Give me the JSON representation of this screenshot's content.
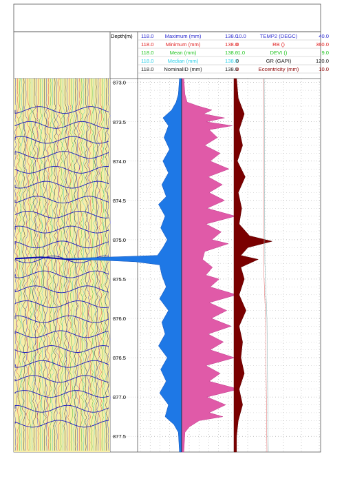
{
  "depth_header": "Depth(m)",
  "legend_rows": [
    {
      "left": "118.0",
      "name": "Maximum (mm)",
      "right": "138.0",
      "color": "#2f2fd0",
      "left2": "10.0",
      "name2": "TEMP2 (DEGC)",
      "right2": "40.0",
      "color2": "#2f2fd0"
    },
    {
      "left": "118.0",
      "name": "Minimum (mm)",
      "right": "138.0",
      "color": "#e02020",
      "left2": "0",
      "name2": "RB ()",
      "right2": "360.0",
      "color2": "#e02020"
    },
    {
      "left": "118.0",
      "name": "Mean (mm)",
      "right": "138.0",
      "color": "#22c522",
      "left2": "-1.0",
      "name2": "DEVI ()",
      "right2": "9.0",
      "color2": "#22c522"
    },
    {
      "left": "118.0",
      "name": "Median (mm)",
      "right": "138.0",
      "color": "#2fd0e8",
      "left2": "0",
      "name2": "GR (GAPI)",
      "right2": "120.0",
      "color2": "#222222"
    },
    {
      "left": "118.0",
      "name": "NominalID (mm)",
      "right": "138.0",
      "color": "#222222",
      "left2": "0",
      "name2": "Eccentricity (mm)",
      "right2": "10.0",
      "color2": "#8b0000"
    }
  ],
  "chart_data": {
    "type": "line",
    "title": "",
    "ylabel": "Depth(m)",
    "ylim": [
      872.95,
      877.7
    ],
    "depth_ticks": [
      873.0,
      873.5,
      874.0,
      874.5,
      875.0,
      875.5,
      876.0,
      876.5,
      877.0,
      877.5
    ],
    "caliper_scale": [
      118.0,
      138.0
    ],
    "nominal_id_mm": 126.0,
    "series": [
      {
        "name": "Maximum (mm)",
        "color": "#e05aa8",
        "points": [
          [
            872.95,
            126.4
          ],
          [
            873.15,
            126.6
          ],
          [
            873.25,
            127.0
          ],
          [
            873.3,
            129.0
          ],
          [
            873.35,
            131.5
          ],
          [
            873.4,
            130.0
          ],
          [
            873.45,
            133.8
          ],
          [
            873.5,
            130.5
          ],
          [
            873.55,
            135.2
          ],
          [
            873.6,
            131.0
          ],
          [
            873.7,
            132.5
          ],
          [
            873.8,
            130.2
          ],
          [
            873.9,
            133.0
          ],
          [
            874.0,
            131.2
          ],
          [
            874.1,
            134.6
          ],
          [
            874.2,
            130.8
          ],
          [
            874.3,
            133.4
          ],
          [
            874.4,
            131.0
          ],
          [
            874.5,
            133.8
          ],
          [
            874.6,
            130.6
          ],
          [
            874.7,
            135.8
          ],
          [
            874.8,
            130.4
          ],
          [
            874.9,
            133.2
          ],
          [
            875.0,
            131.5
          ],
          [
            875.05,
            134.5
          ],
          [
            875.15,
            130.2
          ],
          [
            875.25,
            129.8
          ],
          [
            875.35,
            131.6
          ],
          [
            875.45,
            130.4
          ],
          [
            875.5,
            132.8
          ],
          [
            875.6,
            131.2
          ],
          [
            875.7,
            136.0
          ],
          [
            875.8,
            131.0
          ],
          [
            875.9,
            134.2
          ],
          [
            876.0,
            131.4
          ],
          [
            876.1,
            135.0
          ],
          [
            876.2,
            130.8
          ],
          [
            876.3,
            133.6
          ],
          [
            876.4,
            131.2
          ],
          [
            876.5,
            135.6
          ],
          [
            876.6,
            130.4
          ],
          [
            876.7,
            133.0
          ],
          [
            876.8,
            131.0
          ],
          [
            876.9,
            136.4
          ],
          [
            877.0,
            130.6
          ],
          [
            877.1,
            134.0
          ],
          [
            877.2,
            131.0
          ],
          [
            877.25,
            133.5
          ],
          [
            877.3,
            129.2
          ],
          [
            877.38,
            127.4
          ],
          [
            877.45,
            126.6
          ],
          [
            877.7,
            126.4
          ]
        ]
      },
      {
        "name": "Minimum (mm)",
        "color": "#1e78e6",
        "points": [
          [
            872.95,
            125.6
          ],
          [
            873.15,
            125.4
          ],
          [
            873.25,
            125.0
          ],
          [
            873.35,
            124.2
          ],
          [
            873.45,
            122.6
          ],
          [
            873.55,
            123.6
          ],
          [
            873.7,
            122.8
          ],
          [
            873.85,
            123.8
          ],
          [
            874.0,
            122.6
          ],
          [
            874.15,
            123.6
          ],
          [
            874.3,
            122.4
          ],
          [
            874.45,
            123.2
          ],
          [
            874.55,
            121.8
          ],
          [
            874.7,
            123.0
          ],
          [
            874.85,
            122.2
          ],
          [
            875.0,
            123.4
          ],
          [
            875.1,
            122.6
          ],
          [
            875.2,
            121.6
          ],
          [
            875.24,
            104.4
          ],
          [
            875.28,
            117.6
          ],
          [
            875.32,
            122.0
          ],
          [
            875.45,
            122.4
          ],
          [
            875.6,
            123.2
          ],
          [
            875.75,
            122.0
          ],
          [
            875.9,
            123.6
          ],
          [
            876.05,
            122.4
          ],
          [
            876.2,
            123.0
          ],
          [
            876.35,
            121.8
          ],
          [
            876.5,
            123.4
          ],
          [
            876.65,
            122.2
          ],
          [
            876.8,
            123.2
          ],
          [
            876.95,
            122.0
          ],
          [
            877.1,
            123.6
          ],
          [
            877.25,
            123.0
          ],
          [
            877.35,
            124.6
          ],
          [
            877.45,
            125.4
          ],
          [
            877.7,
            125.6
          ]
        ]
      },
      {
        "name": "Eccentricity (mm)",
        "color": "#7a0000",
        "points": [
          [
            872.95,
            0.3
          ],
          [
            873.2,
            0.5
          ],
          [
            873.4,
            1.2
          ],
          [
            873.6,
            0.6
          ],
          [
            873.8,
            1.0
          ],
          [
            874.0,
            0.4
          ],
          [
            874.2,
            1.3
          ],
          [
            874.4,
            0.5
          ],
          [
            874.6,
            0.9
          ],
          [
            874.8,
            0.6
          ],
          [
            874.95,
            1.8
          ],
          [
            875.02,
            4.4
          ],
          [
            875.1,
            1.6
          ],
          [
            875.2,
            0.8
          ],
          [
            875.25,
            2.8
          ],
          [
            875.35,
            0.8
          ],
          [
            875.5,
            1.2
          ],
          [
            875.7,
            0.6
          ],
          [
            875.9,
            1.4
          ],
          [
            876.1,
            0.6
          ],
          [
            876.3,
            1.0
          ],
          [
            876.5,
            0.8
          ],
          [
            876.7,
            1.2
          ],
          [
            876.9,
            0.6
          ],
          [
            877.1,
            1.0
          ],
          [
            877.3,
            0.5
          ],
          [
            877.5,
            0.3
          ],
          [
            877.7,
            0.3
          ]
        ]
      }
    ]
  }
}
